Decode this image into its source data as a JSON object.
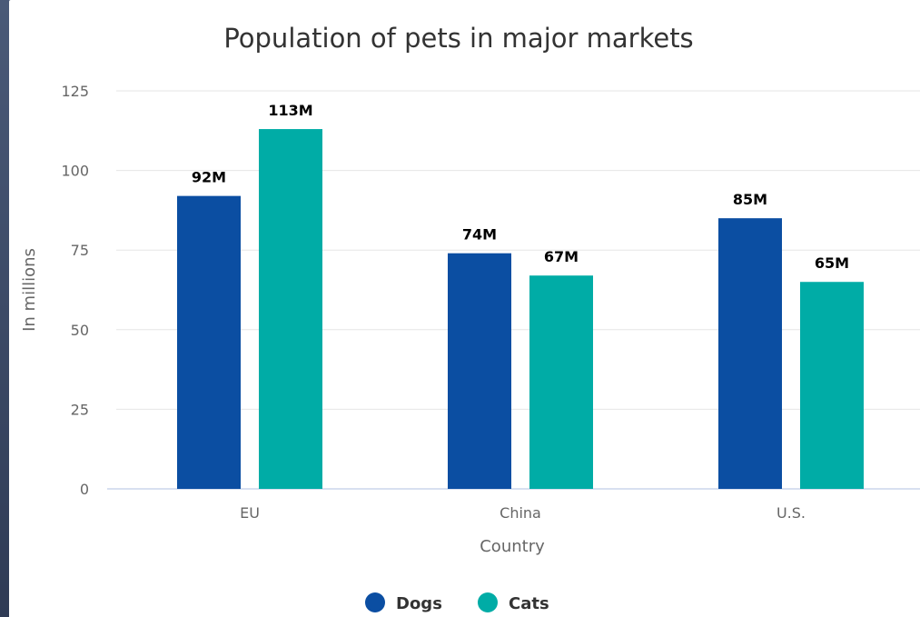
{
  "chart_data": {
    "type": "bar",
    "title": "Population of pets in major markets",
    "xlabel": "Country",
    "ylabel": "In millions",
    "categories": [
      "EU",
      "China",
      "U.S."
    ],
    "series": [
      {
        "name": "Dogs",
        "values": [
          92,
          74,
          85
        ],
        "labels": [
          "92M",
          "74M",
          "85M"
        ],
        "color": "#0b4ea2"
      },
      {
        "name": "Cats",
        "values": [
          113,
          67,
          65
        ],
        "labels": [
          "113M",
          "67M",
          "65M"
        ],
        "color": "#00aca6"
      }
    ],
    "yticks": [
      "0",
      "25",
      "50",
      "75",
      "100",
      "125"
    ],
    "ylim": [
      0,
      125
    ],
    "grid": true,
    "legend_position": "bottom-center"
  }
}
